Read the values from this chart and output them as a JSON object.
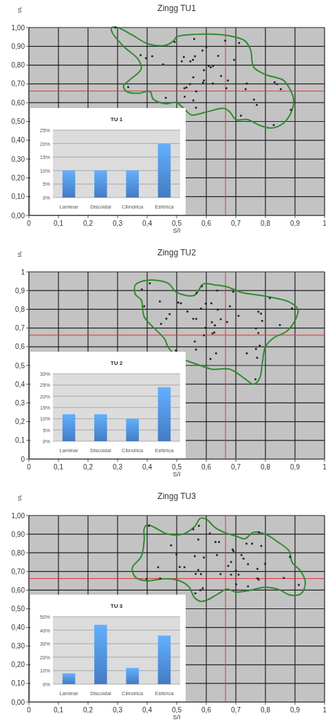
{
  "chart_data": [
    {
      "type": "scatter",
      "title": "Zingg TU1",
      "xlabel": "S/I",
      "ylabel": "I/L",
      "color": "#202020",
      "marker": "square",
      "grid": true,
      "xlim": [
        0,
        1
      ],
      "ylim": [
        0,
        1
      ],
      "xticks": [
        {
          "value": 0,
          "label": "0"
        },
        {
          "value": 0.1,
          "label": "0,1"
        },
        {
          "value": 0.2,
          "label": "0,2"
        },
        {
          "value": 0.3,
          "label": "0,3"
        },
        {
          "value": 0.4,
          "label": "0,4"
        },
        {
          "value": 0.5,
          "label": "0,5"
        },
        {
          "value": 0.6,
          "label": "0,6"
        },
        {
          "value": 0.7,
          "label": "0,7"
        },
        {
          "value": 0.8,
          "label": "0,8"
        },
        {
          "value": 0.9,
          "label": "0,9"
        },
        {
          "value": 1,
          "label": "1"
        }
      ],
      "yticks": [
        {
          "value": 0,
          "label": "0,00"
        },
        {
          "value": 0.1,
          "label": "0,10"
        },
        {
          "value": 0.2,
          "label": "0,20"
        },
        {
          "value": 0.3,
          "label": "0,30"
        },
        {
          "value": 0.4,
          "label": "0,40"
        },
        {
          "value": 0.5,
          "label": "0,50"
        },
        {
          "value": 0.6,
          "label": "0,60"
        },
        {
          "value": 0.7,
          "label": "0,70"
        },
        {
          "value": 0.8,
          "label": "0,80"
        },
        {
          "value": 0.9,
          "label": "0,90"
        },
        {
          "value": 1,
          "label": "1,00"
        }
      ],
      "ref_lines": [
        {
          "axis": "x",
          "value": 0.665,
          "color": "#e03030"
        },
        {
          "axis": "y",
          "value": 0.662,
          "color": "#e03030"
        }
      ],
      "x": [
        0.293,
        0.493,
        0.559,
        0.664,
        0.711,
        0.378,
        0.396,
        0.417,
        0.454,
        0.524,
        0.517,
        0.546,
        0.555,
        0.562,
        0.587,
        0.6,
        0.64,
        0.694,
        0.608,
        0.615,
        0.623,
        0.592,
        0.65,
        0.673,
        0.556,
        0.592,
        0.589,
        0.622,
        0.545,
        0.737,
        0.831,
        0.839,
        0.852,
        0.733,
        0.668,
        0.526,
        0.533,
        0.566,
        0.336,
        0.463,
        0.527,
        0.556,
        0.565,
        0.761,
        0.771,
        0.717,
        0.828,
        0.886
      ],
      "values": [
        1.0,
        0.923,
        0.939,
        0.93,
        0.918,
        0.853,
        0.837,
        0.847,
        0.804,
        0.843,
        0.82,
        0.82,
        0.828,
        0.847,
        0.877,
        0.896,
        0.849,
        0.828,
        0.795,
        0.788,
        0.795,
        0.773,
        0.742,
        0.718,
        0.735,
        0.718,
        0.706,
        0.702,
        0.699,
        0.702,
        0.709,
        0.699,
        0.672,
        0.672,
        0.677,
        0.677,
        0.681,
        0.66,
        0.683,
        0.626,
        0.632,
        0.612,
        0.573,
        0.616,
        0.588,
        0.531,
        0.481,
        0.562
      ]
    },
    {
      "type": "bar",
      "title": "TU 1",
      "categories": [
        "Laminar",
        "Discoidal",
        "Cilíndrica",
        "Esférica"
      ],
      "values": [
        10,
        10,
        10,
        20
      ],
      "color": "#4f8ee0",
      "grid": "y",
      "ylim": [
        0,
        25
      ],
      "yticks": [
        {
          "value": 0,
          "label": "0%"
        },
        {
          "value": 5,
          "label": "5%"
        },
        {
          "value": 10,
          "label": "10%"
        },
        {
          "value": 15,
          "label": "15%"
        },
        {
          "value": 20,
          "label": "20%"
        },
        {
          "value": 25,
          "label": "25%"
        }
      ]
    },
    {
      "type": "scatter",
      "title": "Zingg TU2",
      "xlabel": "S/I",
      "ylabel": "I/L",
      "color": "#202020",
      "marker": "square",
      "grid": true,
      "xlim": [
        0,
        1
      ],
      "ylim": [
        0,
        1
      ],
      "xticks": [
        {
          "value": 0,
          "label": "0"
        },
        {
          "value": 0.1,
          "label": "0,1"
        },
        {
          "value": 0.2,
          "label": "0,2"
        },
        {
          "value": 0.3,
          "label": "0,3"
        },
        {
          "value": 0.4,
          "label": "0,4"
        },
        {
          "value": 0.5,
          "label": "0,5"
        },
        {
          "value": 0.6,
          "label": "0,6"
        },
        {
          "value": 0.7,
          "label": "0,7"
        },
        {
          "value": 0.8,
          "label": "0,8"
        },
        {
          "value": 0.9,
          "label": "0,9"
        },
        {
          "value": 1,
          "label": "1"
        }
      ],
      "yticks": [
        {
          "value": 0,
          "label": "0"
        },
        {
          "value": 0.1,
          "label": "0,1"
        },
        {
          "value": 0.2,
          "label": "0,2"
        },
        {
          "value": 0.3,
          "label": "0,3"
        },
        {
          "value": 0.4,
          "label": "0,4"
        },
        {
          "value": 0.5,
          "label": "0,5"
        },
        {
          "value": 0.6,
          "label": "0,6"
        },
        {
          "value": 0.7,
          "label": "0,7"
        },
        {
          "value": 0.8,
          "label": "0,8"
        },
        {
          "value": 0.9,
          "label": "0,9"
        },
        {
          "value": 1,
          "label": "1"
        }
      ],
      "ref_lines": [
        {
          "axis": "x",
          "value": 0.665,
          "color": "#e03030"
        },
        {
          "axis": "y",
          "value": 0.662,
          "color": "#e03030"
        }
      ],
      "x": [
        0.409,
        0.382,
        0.39,
        0.443,
        0.476,
        0.465,
        0.447,
        0.505,
        0.514,
        0.536,
        0.556,
        0.566,
        0.567,
        0.585,
        0.582,
        0.598,
        0.617,
        0.637,
        0.639,
        0.649,
        0.619,
        0.629,
        0.597,
        0.621,
        0.627,
        0.592,
        0.67,
        0.68,
        0.691,
        0.709,
        0.561,
        0.565,
        0.497,
        0.633,
        0.614,
        0.737,
        0.768,
        0.781,
        0.772,
        0.766,
        0.768,
        0.776,
        0.776,
        0.785,
        0.789,
        0.815,
        0.849,
        0.89
      ],
      "values": [
        0.939,
        0.906,
        0.816,
        0.842,
        0.774,
        0.75,
        0.722,
        0.836,
        0.832,
        0.788,
        0.749,
        0.749,
        0.887,
        0.923,
        0.804,
        0.83,
        0.832,
        0.9,
        0.798,
        0.747,
        0.731,
        0.714,
        0.701,
        0.671,
        0.676,
        0.661,
        0.732,
        0.816,
        0.894,
        0.765,
        0.628,
        0.585,
        0.58,
        0.565,
        0.535,
        0.565,
        0.588,
        0.606,
        0.541,
        0.426,
        0.698,
        0.673,
        0.787,
        0.777,
        0.738,
        0.86,
        0.716,
        0.805
      ]
    },
    {
      "type": "bar",
      "title": "TU 2",
      "categories": [
        "Laminar",
        "Discoidal",
        "Cilíndrica",
        "Esférica"
      ],
      "values": [
        12,
        12,
        10,
        24
      ],
      "color": "#4f8ee0",
      "grid": "y",
      "ylim": [
        0,
        30
      ],
      "yticks": [
        {
          "value": 0,
          "label": "0%"
        },
        {
          "value": 5,
          "label": "5%"
        },
        {
          "value": 10,
          "label": "10%"
        },
        {
          "value": 15,
          "label": "15%"
        },
        {
          "value": 20,
          "label": "20%"
        },
        {
          "value": 25,
          "label": "25%"
        },
        {
          "value": 30,
          "label": "30%"
        }
      ]
    },
    {
      "type": "scatter",
      "title": "Zingg TU3",
      "xlabel": "S/I",
      "ylabel": "I/L",
      "color": "#202020",
      "marker": "square",
      "grid": true,
      "xlim": [
        0,
        1
      ],
      "ylim": [
        0,
        1
      ],
      "xticks": [
        0,
        {
          "value": 0.1,
          "label": "0,1"
        },
        {
          "value": 0.2,
          "label": "0,2"
        },
        {
          "value": 0.3,
          "label": "0,3"
        },
        {
          "value": 0.4,
          "label": "0,4"
        },
        {
          "value": 0.5,
          "label": "0,5"
        },
        {
          "value": 0.6,
          "label": "0,6"
        },
        {
          "value": 0.7,
          "label": "0,7"
        },
        {
          "value": 0.8,
          "label": "0,8"
        },
        {
          "value": 0.9,
          "label": "0,9"
        },
        1
      ],
      "yticks": [
        {
          "value": 0,
          "label": "0,00"
        },
        {
          "value": 0.1,
          "label": "0,10"
        },
        {
          "value": 0.2,
          "label": "0,20"
        },
        {
          "value": 0.3,
          "label": "0,30"
        },
        {
          "value": 0.4,
          "label": "0,40"
        },
        {
          "value": 0.5,
          "label": "0,50"
        },
        {
          "value": 0.6,
          "label": "0,60"
        },
        {
          "value": 0.7,
          "label": "0,70"
        },
        {
          "value": 0.8,
          "label": "0,80"
        },
        {
          "value": 0.9,
          "label": "0,90"
        },
        {
          "value": 1,
          "label": "1,00"
        }
      ],
      "ref_lines": [
        {
          "axis": "x",
          "value": 0.665,
          "color": "#e03030"
        },
        {
          "axis": "y",
          "value": 0.662,
          "color": "#e03030"
        }
      ],
      "x": [
        0.406,
        0.556,
        0.575,
        0.573,
        0.612,
        0.481,
        0.499,
        0.561,
        0.592,
        0.631,
        0.643,
        0.636,
        0.689,
        0.692,
        0.684,
        0.674,
        0.719,
        0.726,
        0.736,
        0.755,
        0.786,
        0.778,
        0.741,
        0.773,
        0.799,
        0.883,
        0.437,
        0.51,
        0.526,
        0.573,
        0.564,
        0.582,
        0.648,
        0.684,
        0.7,
        0.709,
        0.398,
        0.444,
        0.773,
        0.777,
        0.862,
        0.913,
        0.701,
        0.741,
        0.588,
        0.58,
        0.563
      ],
      "values": [
        0.945,
        0.926,
        0.945,
        0.871,
        0.904,
        0.84,
        0.791,
        0.782,
        0.775,
        0.858,
        0.858,
        0.788,
        0.818,
        0.809,
        0.751,
        0.73,
        0.788,
        0.769,
        0.849,
        0.849,
        0.837,
        0.91,
        0.739,
        0.714,
        0.741,
        0.778,
        0.723,
        0.724,
        0.723,
        0.708,
        0.687,
        0.686,
        0.686,
        0.683,
        0.704,
        0.683,
        0.659,
        0.663,
        0.663,
        0.656,
        0.665,
        0.628,
        0.631,
        0.62,
        0.61,
        0.6,
        0.583
      ]
    },
    {
      "type": "bar",
      "title": "TU 3",
      "categories": [
        "Laminar",
        "Discoidal",
        "Cilíndrica",
        "Esférica"
      ],
      "values": [
        8,
        44,
        12,
        36
      ],
      "color": "#4f8ee0",
      "grid": "y",
      "ylim": [
        0,
        50
      ],
      "yticks": [
        {
          "value": 0,
          "label": "0%"
        },
        {
          "value": 10,
          "label": "10%"
        },
        {
          "value": 20,
          "label": "20%"
        },
        {
          "value": 30,
          "label": "30%"
        },
        {
          "value": 40,
          "label": "40%"
        },
        {
          "value": 50,
          "label": "50%"
        }
      ]
    }
  ]
}
